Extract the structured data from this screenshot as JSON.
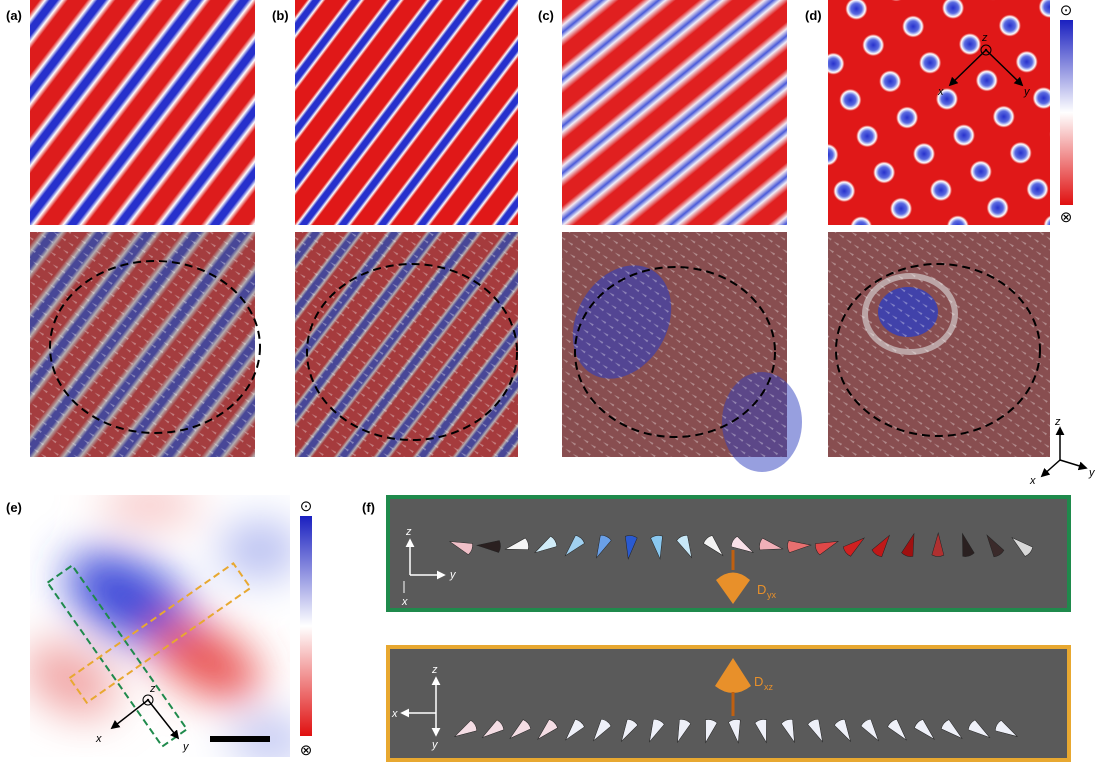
{
  "panel_labels": [
    "(a)",
    "(b)",
    "(c)",
    "(d)",
    "(e)",
    "(f)"
  ],
  "colorbar_top": {
    "top_symbol": "⊙",
    "bottom_symbol": "⊗"
  },
  "colorbar_e": {
    "top_symbol": "⊙",
    "bottom_symbol": "⊗"
  },
  "axes_d": {
    "z": "z",
    "x": "x",
    "y": "y"
  },
  "axes_triad": {
    "z": "z",
    "x": "x",
    "y": "y"
  },
  "axes_e": {
    "z": "z",
    "x": "x",
    "y": "y"
  },
  "panel_f": {
    "green": {
      "z": "z",
      "y": "y",
      "x": "x",
      "d_label": "D",
      "d_sub": "yx"
    },
    "orange": {
      "z": "z",
      "x": "x",
      "y": "y",
      "d_label": "D",
      "d_sub": "xz"
    }
  }
}
